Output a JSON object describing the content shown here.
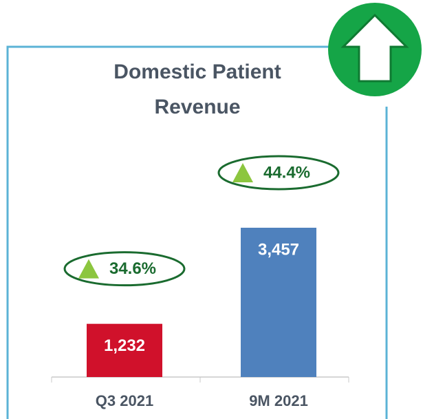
{
  "chart_data": {
    "type": "bar",
    "title": [
      "Domestic Patient",
      "Revenue"
    ],
    "categories": [
      "Q3 2021",
      "9M 2021"
    ],
    "values": [
      1232,
      3457
    ],
    "value_labels": [
      "1,232",
      "3,457"
    ],
    "colors": [
      "#d0112b",
      "#4f81bd"
    ],
    "annotations": [
      "34.6%",
      "44.4%"
    ]
  }
}
